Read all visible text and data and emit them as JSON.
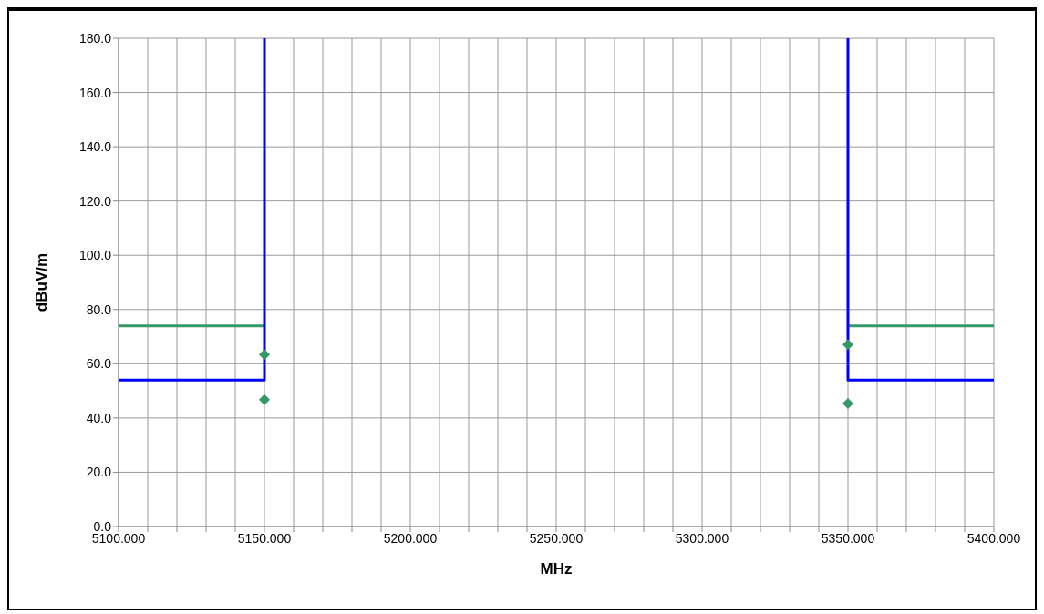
{
  "chart_data": {
    "type": "line",
    "xlabel": "MHz",
    "ylabel": "dBuV/m",
    "xlim": [
      5100,
      5400
    ],
    "xticks": [
      {
        "value": 5100,
        "label": "5100.000"
      },
      {
        "value": 5110,
        "label": null
      },
      {
        "value": 5120,
        "label": null
      },
      {
        "value": 5130,
        "label": null
      },
      {
        "value": 5140,
        "label": null
      },
      {
        "value": 5150,
        "label": "5150.000"
      },
      {
        "value": 5160,
        "label": null
      },
      {
        "value": 5170,
        "label": null
      },
      {
        "value": 5180,
        "label": null
      },
      {
        "value": 5190,
        "label": null
      },
      {
        "value": 5200,
        "label": "5200.000"
      },
      {
        "value": 5210,
        "label": null
      },
      {
        "value": 5220,
        "label": null
      },
      {
        "value": 5230,
        "label": null
      },
      {
        "value": 5240,
        "label": null
      },
      {
        "value": 5250,
        "label": "5250.000"
      },
      {
        "value": 5260,
        "label": null
      },
      {
        "value": 5270,
        "label": null
      },
      {
        "value": 5280,
        "label": null
      },
      {
        "value": 5290,
        "label": null
      },
      {
        "value": 5300,
        "label": "5300.000"
      },
      {
        "value": 5310,
        "label": null
      },
      {
        "value": 5320,
        "label": null
      },
      {
        "value": 5330,
        "label": null
      },
      {
        "value": 5340,
        "label": null
      },
      {
        "value": 5350,
        "label": "5350.000"
      },
      {
        "value": 5360,
        "label": null
      },
      {
        "value": 5370,
        "label": null
      },
      {
        "value": 5380,
        "label": null
      },
      {
        "value": 5390,
        "label": null
      },
      {
        "value": 5400,
        "label": "5400.000"
      }
    ],
    "ylim": [
      0,
      180
    ],
    "yticks": [
      {
        "value": 0,
        "label": "0.0"
      },
      {
        "value": 20,
        "label": "20.0"
      },
      {
        "value": 40,
        "label": "40.0"
      },
      {
        "value": 60,
        "label": "60.0"
      },
      {
        "value": 80,
        "label": "80.0"
      },
      {
        "value": 100,
        "label": "100.0"
      },
      {
        "value": 120,
        "label": "120.0"
      },
      {
        "value": 140,
        "label": "140.0"
      },
      {
        "value": 160,
        "label": "160.0"
      },
      {
        "value": 180,
        "label": "180.0"
      }
    ],
    "grid": true,
    "series": [
      {
        "color": "#339966",
        "marker": "none",
        "line_style": "solid",
        "x": [
          5100,
          5150,
          5250,
          5350,
          5400
        ],
        "values": [
          74,
          74,
          null,
          74,
          74
        ]
      },
      {
        "color": "#0000ff",
        "marker": "none",
        "line_style": "solid",
        "x": [
          5100,
          5150,
          5150,
          5250,
          5350,
          5350,
          5400
        ],
        "values": [
          54,
          54,
          180,
          null,
          180,
          54,
          54
        ]
      },
      {
        "type": "scatter",
        "color": "#339966",
        "marker": "diamond",
        "x": [
          5150,
          5150,
          5350,
          5350
        ],
        "values": [
          63.4,
          46.8,
          67.1,
          45.3
        ]
      }
    ]
  }
}
